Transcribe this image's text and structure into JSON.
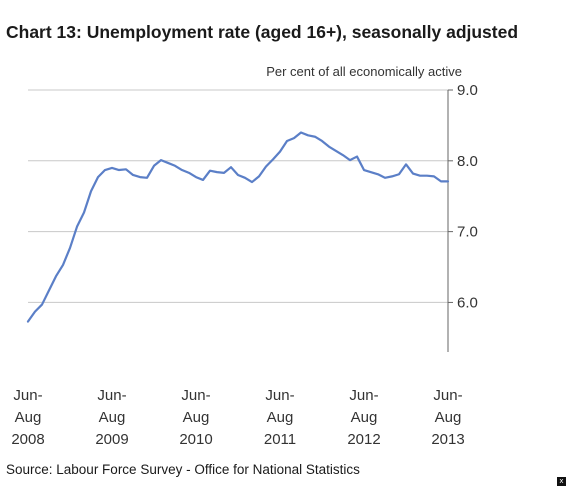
{
  "chart_data": {
    "type": "line",
    "title": "Chart 13: Unemployment rate (aged 16+), seasonally adjusted",
    "ylabel": "Per cent of all economically active",
    "ylim": [
      5.3,
      9.0
    ],
    "yticks": [
      "9.0",
      "8.0",
      "7.0",
      "6.0"
    ],
    "ytick_values": [
      9.0,
      8.0,
      7.0,
      6.0
    ],
    "grid": true,
    "xtick_labels": [
      {
        "line1": "Jun-",
        "line2": "Aug",
        "line3": "2008",
        "index": 0
      },
      {
        "line1": "Jun-",
        "line2": "Aug",
        "line3": "2009",
        "index": 12
      },
      {
        "line1": "Jun-",
        "line2": "Aug",
        "line3": "2010",
        "index": 24
      },
      {
        "line1": "Jun-",
        "line2": "Aug",
        "line3": "2011",
        "index": 36
      },
      {
        "line1": "Jun-",
        "line2": "Aug",
        "line3": "2012",
        "index": 48
      },
      {
        "line1": "Jun-",
        "line2": "Aug",
        "line3": "2013",
        "index": 60
      }
    ],
    "series": [
      {
        "color": "#5b7fc7",
        "values": [
          5.73,
          5.87,
          5.97,
          6.17,
          6.37,
          6.53,
          6.77,
          7.07,
          7.27,
          7.57,
          7.77,
          7.87,
          7.9,
          7.87,
          7.88,
          7.8,
          7.77,
          7.76,
          7.93,
          8.01,
          7.97,
          7.93,
          7.87,
          7.83,
          7.77,
          7.73,
          7.86,
          7.84,
          7.83,
          7.91,
          7.8,
          7.76,
          7.7,
          7.78,
          7.92,
          8.02,
          8.13,
          8.28,
          8.32,
          8.4,
          8.36,
          8.34,
          8.28,
          8.2,
          8.14,
          8.08,
          8.01,
          8.06,
          7.87,
          7.84,
          7.81,
          7.76,
          7.78,
          7.81,
          7.95,
          7.82,
          7.79,
          7.79,
          7.78,
          7.71,
          7.71
        ]
      }
    ]
  },
  "footer": {
    "source": "Source: Labour Force Survey - Office for National Statistics"
  },
  "controls": {
    "close_label": "x"
  }
}
